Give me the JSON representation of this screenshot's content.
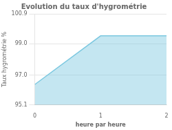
{
  "chart_data": {
    "type": "area",
    "title": "Evolution du taux d'hygrométrie",
    "xlabel": "heure par heure",
    "ylabel": "Taux hygrométrie %",
    "x": [
      0,
      1,
      2
    ],
    "values": [
      96.4,
      99.5,
      99.5
    ],
    "color": "#7cc8e0",
    "xlim": [
      0,
      2
    ],
    "ylim": [
      95.1,
      100.9
    ],
    "xticks": [
      0,
      1,
      2
    ],
    "yticks": [
      95.1,
      {
        "value": 97.0,
        "label": "97.0"
      },
      {
        "value": 99.0,
        "label": "99.0"
      },
      100.9
    ],
    "grid": "y"
  }
}
